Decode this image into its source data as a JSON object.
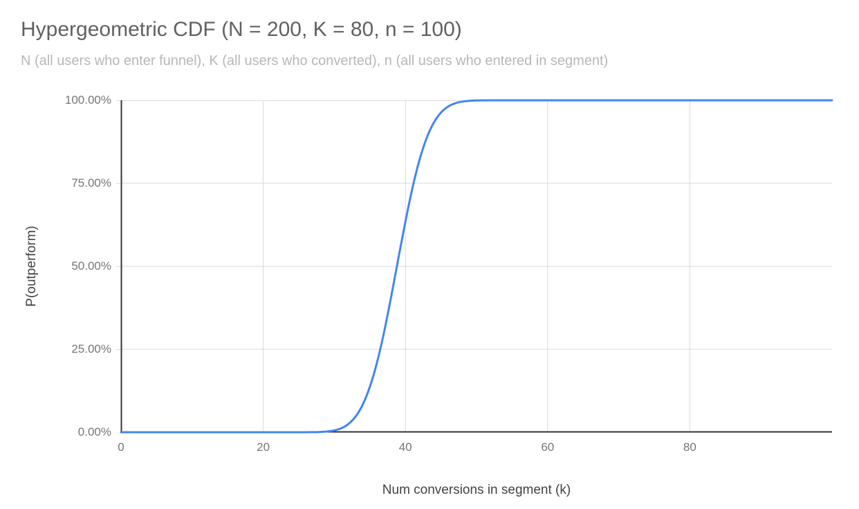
{
  "chart_data": {
    "type": "line",
    "title": "Hypergeometric CDF (N = 200, K = 80, n = 100)",
    "subtitle": "N (all users who enter funnel), K (all users who converted), n (all users who entered in segment)",
    "xlabel": "Num conversions in segment (k)",
    "ylabel": "P(outperform)",
    "xlim": [
      0,
      100
    ],
    "ylim": [
      0,
      1
    ],
    "grid": true,
    "legend": "none",
    "x_ticks": [
      {
        "value": 0,
        "label": "0"
      },
      {
        "value": 20,
        "label": "20"
      },
      {
        "value": 40,
        "label": "40"
      },
      {
        "value": 60,
        "label": "60"
      },
      {
        "value": 80,
        "label": "80"
      }
    ],
    "y_ticks": [
      {
        "value": 0,
        "label": "0.00%"
      },
      {
        "value": 0.25,
        "label": "25.00%"
      },
      {
        "value": 0.5,
        "label": "50.00%"
      },
      {
        "value": 0.75,
        "label": "75.00%"
      },
      {
        "value": 1,
        "label": "100.00%"
      }
    ],
    "series": [
      {
        "name": "P(outperform)",
        "points": [
          [
            0,
            0
          ],
          [
            5,
            0
          ],
          [
            10,
            0
          ],
          [
            15,
            0
          ],
          [
            20,
            0
          ],
          [
            24,
            0
          ],
          [
            25,
            5e-05
          ],
          [
            26,
            0.0001
          ],
          [
            27,
            0.0003
          ],
          [
            28,
            0.0009
          ],
          [
            29,
            0.0024
          ],
          [
            30,
            0.0056
          ],
          [
            31,
            0.0123
          ],
          [
            32,
            0.0251
          ],
          [
            33,
            0.0475
          ],
          [
            34,
            0.0835
          ],
          [
            35,
            0.137
          ],
          [
            36,
            0.21
          ],
          [
            37,
            0.302
          ],
          [
            38,
            0.409
          ],
          [
            39,
            0.523
          ],
          [
            40,
            0.635
          ],
          [
            41,
            0.737
          ],
          [
            42,
            0.822
          ],
          [
            43,
            0.887
          ],
          [
            44,
            0.933
          ],
          [
            45,
            0.963
          ],
          [
            46,
            0.981
          ],
          [
            47,
            0.991
          ],
          [
            48,
            0.996
          ],
          [
            49,
            0.9983
          ],
          [
            50,
            0.9994
          ],
          [
            51,
            0.9998
          ],
          [
            52,
            0.9999
          ],
          [
            53,
            1
          ],
          [
            55,
            1
          ],
          [
            60,
            1
          ],
          [
            70,
            1
          ],
          [
            80,
            1
          ],
          [
            90,
            1
          ],
          [
            100,
            1
          ]
        ]
      }
    ],
    "colors": {
      "line": "#4285f4",
      "gridline": "#d9d9d9",
      "axis": "#333333",
      "title": "#616161",
      "subtitle": "#b7b7b7",
      "tick_label": "#757575",
      "axis_title": "#424242",
      "background": "#ffffff"
    }
  }
}
